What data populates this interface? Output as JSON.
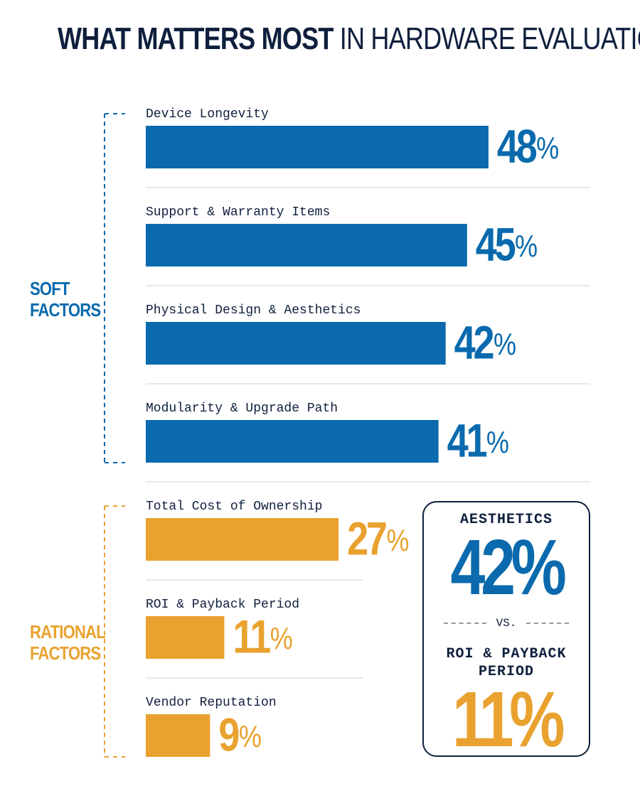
{
  "chart_data": {
    "type": "bar",
    "orientation": "horizontal",
    "title": {
      "emphasis": "WHAT MATTERS MOST",
      "rest": "IN HARDWARE EVALUATION"
    },
    "groups": [
      {
        "name": "SOFT FACTORS",
        "color": "#0a6aad",
        "categories": [
          "Device Longevity",
          "Support & Warranty Items",
          "Physical Design & Aesthetics",
          "Modularity & Upgrade Path"
        ],
        "values": [
          48,
          45,
          42,
          41
        ],
        "value_labels": [
          "48%",
          "45%",
          "42%",
          "41%"
        ]
      },
      {
        "name": "RATIONAL FACTORS",
        "color": "#e9a22f",
        "categories": [
          "Total Cost of Ownership",
          "ROI & Payback Period",
          "Vendor Reputation"
        ],
        "values": [
          27,
          11,
          9
        ],
        "value_labels": [
          "27%",
          "11%",
          "9%"
        ]
      }
    ],
    "callout": {
      "items": [
        {
          "label": "AESTHETICS",
          "value_label": "42%",
          "color": "#0a6aad"
        },
        {
          "label": "ROI & PAYBACK PERIOD",
          "value_label": "11%",
          "color": "#e9a22f"
        }
      ],
      "separator": "VS."
    }
  }
}
